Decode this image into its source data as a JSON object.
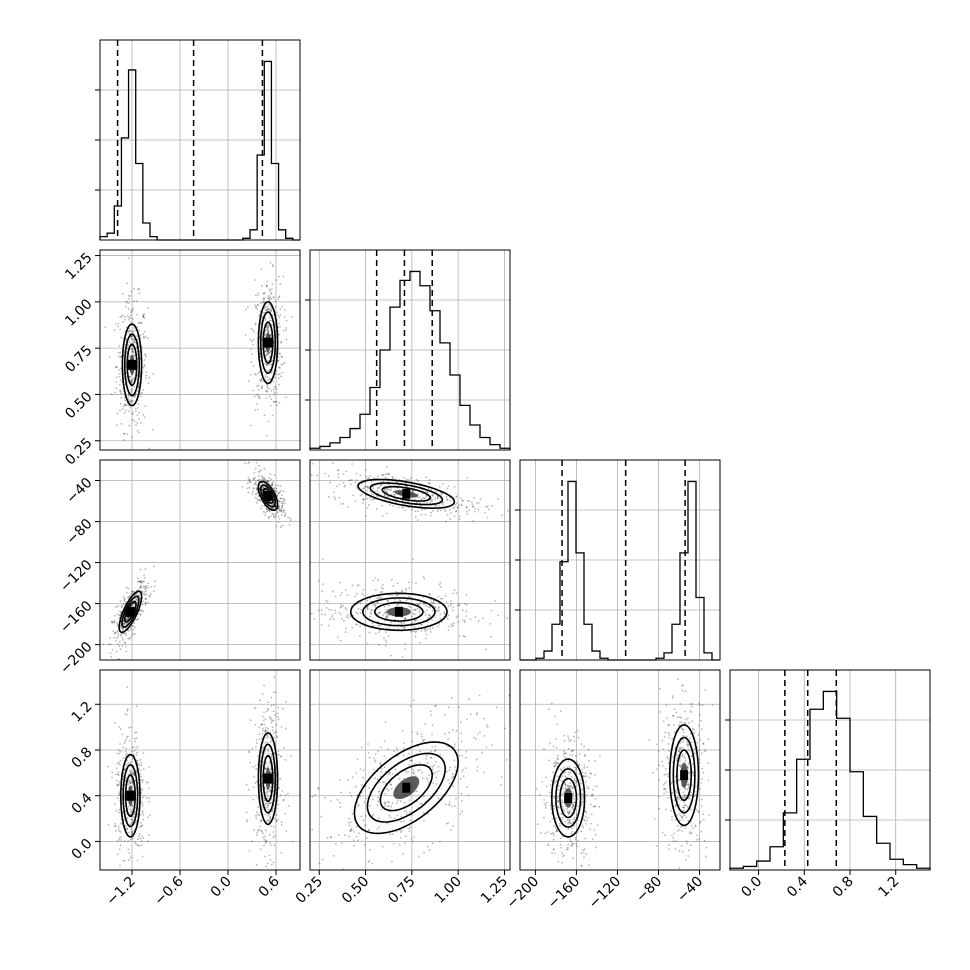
{
  "chart_data": {
    "type": "corner",
    "parameters": [
      {
        "id": "p0",
        "range": [
          -1.6,
          0.9
        ],
        "ticks": [
          -1.2,
          -0.6,
          0.0,
          0.6
        ],
        "tick_labels": [
          "−1.2",
          "−0.6",
          "0.0",
          "0.6"
        ],
        "quantiles": [
          -1.38,
          -0.43,
          0.43
        ]
      },
      {
        "id": "p1",
        "range": [
          0.2,
          1.28
        ],
        "ticks": [
          0.25,
          0.5,
          0.75,
          1.0,
          1.25
        ],
        "tick_labels": [
          "0.25",
          "0.50",
          "0.75",
          "1.00",
          "1.25"
        ],
        "quantiles": [
          0.56,
          0.71,
          0.86
        ]
      },
      {
        "id": "p2",
        "range": [
          -215,
          -20
        ],
        "ticks": [
          -200,
          -160,
          -120,
          -80,
          -40
        ],
        "tick_labels": [
          "−200",
          "−160",
          "−120",
          "−80",
          "−40"
        ],
        "quantiles": [
          -174,
          -112,
          -54
        ]
      },
      {
        "id": "p3",
        "range": [
          -0.25,
          1.5
        ],
        "ticks": [
          0.0,
          0.4,
          0.8,
          1.2
        ],
        "tick_labels": [
          "0.0",
          "0.4",
          "0.8",
          "1.2"
        ],
        "quantiles": [
          0.23,
          0.43,
          0.68
        ]
      }
    ],
    "histograms": [
      {
        "param": 0,
        "counts": [
          0.02,
          0.04,
          0.2,
          0.6,
          1.0,
          0.45,
          0.1,
          0.02,
          0.0,
          0.0,
          0.0,
          0.0,
          0.0,
          0.0,
          0.0,
          0.0,
          0.0,
          0.0,
          0.0,
          0.0,
          0.01,
          0.06,
          0.5,
          1.05,
          0.45,
          0.06,
          0.01,
          0.0
        ]
      },
      {
        "param": 1,
        "counts": [
          0.01,
          0.02,
          0.04,
          0.07,
          0.12,
          0.2,
          0.35,
          0.56,
          0.8,
          0.95,
          1.0,
          0.92,
          0.78,
          0.6,
          0.42,
          0.25,
          0.14,
          0.07,
          0.03,
          0.01
        ]
      },
      {
        "param": 2,
        "counts": [
          0.0,
          0.0,
          0.01,
          0.05,
          0.2,
          0.55,
          1.0,
          0.6,
          0.2,
          0.05,
          0.01,
          0.0,
          0.0,
          0.0,
          0.0,
          0.0,
          0.0,
          0.01,
          0.04,
          0.2,
          0.6,
          1.0,
          0.35,
          0.04,
          0.0
        ]
      },
      {
        "param": 3,
        "counts": [
          0.01,
          0.02,
          0.05,
          0.13,
          0.32,
          0.62,
          0.9,
          1.0,
          0.85,
          0.55,
          0.3,
          0.15,
          0.06,
          0.03,
          0.01
        ]
      }
    ],
    "joint_distributions": [
      {
        "x": 0,
        "y": 1,
        "modes": [
          {
            "center": [
              -1.2,
              0.66
            ],
            "sd": [
              0.06,
              0.11
            ],
            "corr": 0.0
          },
          {
            "center": [
              0.5,
              0.78
            ],
            "sd": [
              0.06,
              0.11
            ],
            "corr": 0.0
          }
        ]
      },
      {
        "x": 0,
        "y": 2,
        "modes": [
          {
            "center": [
              -1.22,
              -168
            ],
            "sd": [
              0.07,
              10
            ],
            "corr": 0.75
          },
          {
            "center": [
              0.5,
              -55
            ],
            "sd": [
              0.06,
              7
            ],
            "corr": -0.6
          }
        ]
      },
      {
        "x": 1,
        "y": 2,
        "modes": [
          {
            "center": [
              0.72,
              -53
            ],
            "sd": [
              0.13,
              7
            ],
            "corr": -0.55
          },
          {
            "center": [
              0.68,
              -168
            ],
            "sd": [
              0.13,
              9
            ],
            "corr": 0.0
          }
        ]
      },
      {
        "x": 0,
        "y": 3,
        "modes": [
          {
            "center": [
              -1.22,
              0.4
            ],
            "sd": [
              0.06,
              0.18
            ],
            "corr": 0.0
          },
          {
            "center": [
              0.5,
              0.55
            ],
            "sd": [
              0.06,
              0.2
            ],
            "corr": 0.0
          }
        ]
      },
      {
        "x": 1,
        "y": 3,
        "modes": [
          {
            "center": [
              0.72,
              0.47
            ],
            "sd": [
              0.14,
              0.2
            ],
            "corr": 0.55
          }
        ]
      },
      {
        "x": 2,
        "y": 3,
        "modes": [
          {
            "center": [
              -168,
              0.38
            ],
            "sd": [
              8,
              0.17
            ],
            "corr": 0.0
          },
          {
            "center": [
              -55,
              0.58
            ],
            "sd": [
              7,
              0.22
            ],
            "corr": 0.0
          }
        ]
      }
    ],
    "contour_levels_sigma": [
      0.5,
      1.0,
      1.5,
      2.0
    ],
    "grid": true
  }
}
